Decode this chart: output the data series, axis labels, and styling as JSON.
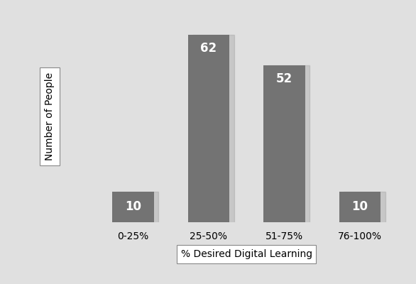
{
  "categories": [
    "0-25%",
    "25-50%",
    "51-75%",
    "76-100%"
  ],
  "values": [
    10,
    62,
    52,
    10
  ],
  "bar_color": "#737373",
  "bar_label_color": "#ffffff",
  "bar_label_fontsize": 12,
  "xlabel": "% Desired Digital Learning",
  "ylabel": "Number of People",
  "background_color": "#e0e0e0",
  "ylim": [
    0,
    70
  ],
  "bar_width": 0.55,
  "xlabel_fontsize": 10,
  "ylabel_fontsize": 10,
  "tick_fontsize": 10
}
